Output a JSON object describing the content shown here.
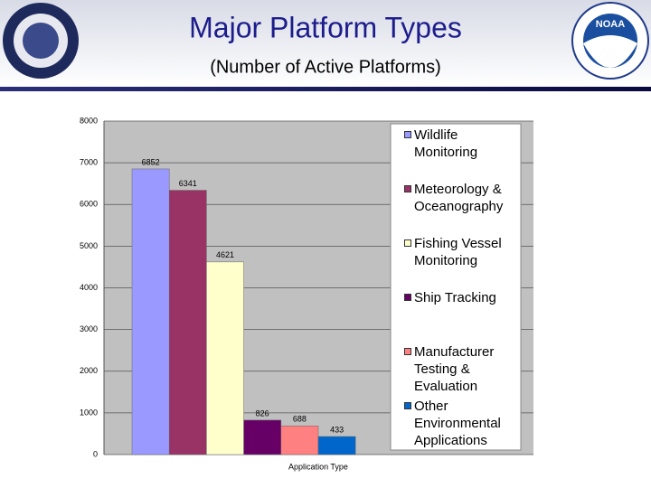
{
  "header": {
    "title": "Major Platform Types",
    "subtitle": "(Number of Active Platforms)",
    "logo_text": "NOAA"
  },
  "chart_data": {
    "type": "bar",
    "x_label": "Application Type",
    "categories": [
      "Wildlife Monitoring",
      "Meteorology & Oceanography",
      "Fishing Vessel Monitoring",
      "Ship Tracking",
      "Manufacturer Testing & Evaluation",
      "Other Environmental Applications"
    ],
    "values": [
      6852,
      6341,
      4621,
      826,
      688,
      433
    ],
    "colors": [
      "#9999ff",
      "#993366",
      "#ffffcc",
      "#660066",
      "#ff8080",
      "#0066cc"
    ],
    "ylim": [
      0,
      8000
    ],
    "yticks": [
      0,
      1000,
      2000,
      3000,
      4000,
      5000,
      6000,
      7000,
      8000
    ],
    "grid": true
  }
}
